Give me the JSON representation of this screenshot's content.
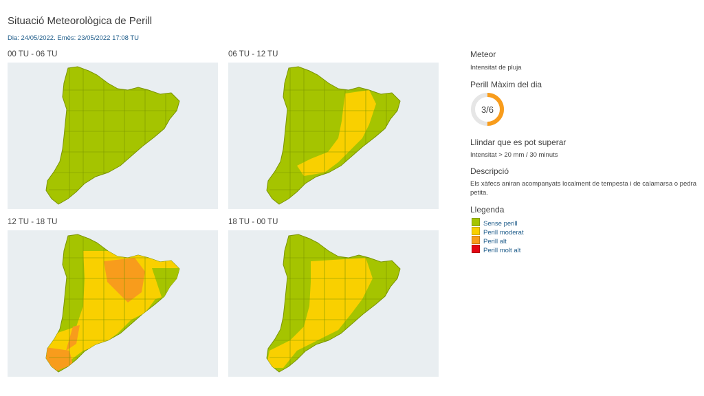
{
  "header": {
    "title": "Situació Meteorològica de Perill",
    "subtitle": "Dia: 24/05/2022. Emès: 23/05/2022 17:08 TU"
  },
  "panels": [
    {
      "label": "00 TU - 06 TU"
    },
    {
      "label": "06 TU - 12 TU"
    },
    {
      "label": "12 TU - 18 TU"
    },
    {
      "label": "18 TU - 00 TU"
    }
  ],
  "side": {
    "meteor_heading": "Meteor",
    "meteor_value": "Intensitat de pluja",
    "max_heading": "Perill Màxim del dia",
    "max_value": "3/6",
    "max_level": 3,
    "max_total": 6,
    "threshold_heading": "Llindar que es pot superar",
    "threshold_value": "Intensitat > 20 mm / 30 minuts",
    "desc_heading": "Descripció",
    "desc_value": "Els xàfecs aniran acompanyats localment de tempesta i de calamarsa o pedra petita.",
    "legend_heading": "Llegenda",
    "legend": [
      {
        "label": "Sense perill",
        "color": "#a5c400"
      },
      {
        "label": "Perill moderat",
        "color": "#f9d000"
      },
      {
        "label": "Perill alt",
        "color": "#f89c1c"
      },
      {
        "label": "Perill molt alt",
        "color": "#e30613"
      }
    ]
  },
  "colors": {
    "green": "#a5c400",
    "yellow": "#f9d000",
    "orange": "#f89c1c",
    "gauge_track": "#e6e6e6"
  }
}
